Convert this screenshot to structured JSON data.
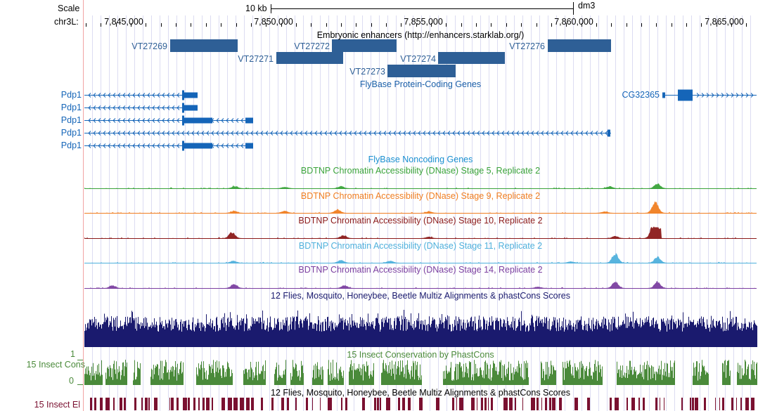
{
  "header": {
    "scale_label": "Scale",
    "scale_value": "10 kb",
    "assembly": "dm3",
    "chrom_label": "chr3L:",
    "positions": [
      "7,845,000",
      "7,850,000",
      "7,855,000",
      "7,860,000",
      "7,865,000"
    ]
  },
  "tracks": {
    "enhancers": {
      "title": "Embryonic enhancers (http://enhancers.starklab.org/)",
      "items": [
        "VT27269",
        "VT27272",
        "VT27276",
        "VT27271",
        "VT27274",
        "VT27273"
      ]
    },
    "genes": {
      "title": "FlyBase Protein-Coding Genes",
      "left_labels": [
        "Pdp1",
        "Pdp1",
        "Pdp1",
        "Pdp1",
        "Pdp1"
      ],
      "right_label": "CG32365"
    },
    "noncoding": {
      "title": "FlyBase Noncoding Genes"
    },
    "dnase": [
      {
        "title": "BDTNP Chromatin Accessibility (DNase) Stage 5, Replicate 2",
        "color": "#3aa33a"
      },
      {
        "title": "BDTNP Chromatin Accessibility (DNase) Stage 9, Replicate 2",
        "color": "#f07e21"
      },
      {
        "title": "BDTNP Chromatin Accessibility (DNase) Stage 10, Replicate 2",
        "color": "#8b1a1a"
      },
      {
        "title": "BDTNP Chromatin Accessibility (DNase) Stage 11, Replicate 2",
        "color": "#4fb0dc"
      },
      {
        "title": "BDTNP Chromatin Accessibility (DNase) Stage 14, Replicate 2",
        "color": "#7b3fa0"
      }
    ],
    "multiz": {
      "title": "12 Flies, Mosquito, Honeybee, Beetle Multiz Alignments & phastCons Scores",
      "color": "#1a1a6e"
    },
    "phastcons": {
      "title": "15 Insect Conservation by PhastCons",
      "side_label": "15 Insect Cons",
      "ymax": "1",
      "ymin": "0",
      "color": "#4a8a3a"
    },
    "elements": {
      "title": "12 Flies, Mosquito, Honeybee, Beetle Multiz Alignments & phastCons Scores",
      "side_label": "15 Insect El",
      "color": "#7a1030"
    }
  },
  "colors": {
    "accent_blue": "#1a5fa8",
    "enhancer_fill": "#2e5f96",
    "gene_blue": "#1565b8",
    "grid": "#d0d0ee",
    "left_border": "#f0a0a0"
  }
}
